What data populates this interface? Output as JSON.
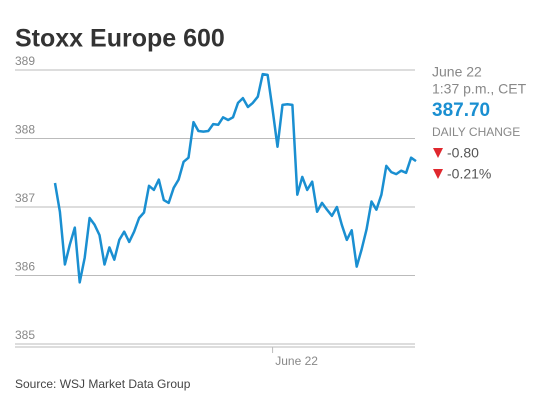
{
  "chart_data": {
    "type": "line",
    "title": "Stoxx Europe 600",
    "color": "#1a8fd1",
    "categories": [
      null,
      null,
      null,
      null,
      null,
      null,
      null,
      null,
      null,
      null,
      null,
      null,
      null,
      null,
      null,
      null,
      null,
      null,
      null,
      null,
      null,
      null,
      null,
      null,
      null,
      null,
      null,
      null,
      null,
      null,
      null,
      null,
      null,
      null,
      null,
      null,
      null,
      null,
      null,
      null,
      null,
      null,
      null,
      null,
      "June 22",
      null,
      null,
      null,
      null,
      null,
      null,
      null,
      null,
      null,
      null,
      null,
      null,
      null,
      null,
      null,
      null,
      null,
      null,
      null,
      null,
      null,
      null,
      null,
      null,
      null,
      null,
      null,
      null,
      null
    ],
    "values": [
      387.35,
      386.93,
      386.16,
      386.45,
      386.7,
      385.9,
      386.26,
      386.84,
      386.74,
      386.59,
      386.16,
      386.41,
      386.23,
      386.52,
      386.64,
      386.49,
      386.64,
      386.84,
      386.92,
      387.31,
      387.25,
      387.4,
      387.1,
      387.06,
      387.28,
      387.4,
      387.66,
      387.72,
      388.24,
      388.11,
      388.1,
      388.11,
      388.21,
      388.2,
      388.31,
      388.27,
      388.31,
      388.52,
      388.59,
      388.46,
      388.52,
      388.61,
      388.94,
      388.93,
      388.42,
      387.88,
      388.49,
      388.5,
      388.49,
      387.18,
      387.44,
      387.25,
      387.37,
      386.93,
      387.06,
      386.96,
      386.87,
      387.0,
      386.74,
      386.52,
      386.66,
      386.13,
      386.38,
      386.67,
      387.08,
      386.96,
      387.18,
      387.6,
      387.51,
      387.48,
      387.53,
      387.5,
      387.72,
      387.67
    ],
    "ylim": [
      385,
      389
    ],
    "yticks": [
      385,
      386,
      387,
      388,
      389
    ],
    "grid": true,
    "side": {
      "date": "June 22",
      "time": "1:37 p.m., CET",
      "last": "387.70",
      "change_label": "DAILY CHANGE",
      "change": "-0.80",
      "change_pct": "-0.21%"
    },
    "source": "Source: WSJ Market Data Group"
  }
}
